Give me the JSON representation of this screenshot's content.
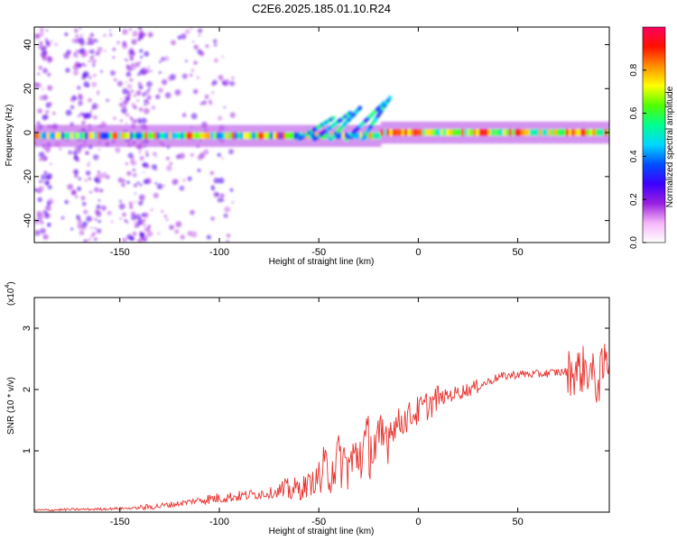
{
  "title": "C2E6.2025.185.01.10.R24",
  "chart_data": [
    {
      "type": "heatmap",
      "xlabel": "Height of straight line (km)",
      "ylabel": "Frequency (Hz)",
      "xlim": [
        -193,
        96
      ],
      "ylim": [
        -50,
        48
      ],
      "xticks": [
        -150,
        -100,
        -50,
        0,
        50
      ],
      "yticks": [
        -40,
        -20,
        0,
        20,
        40
      ],
      "grid": false,
      "colorbar": {
        "label": "Normalized spectral amplitude",
        "range": [
          0,
          1
        ],
        "ticks": [
          "0.0",
          "0.2",
          "0.4",
          "0.6",
          "0.8"
        ],
        "colors": [
          "#ffffff",
          "#f6b6f8",
          "#9a20e0",
          "#3c00ff",
          "#0050ff",
          "#00d8ff",
          "#00ff90",
          "#50ff00",
          "#ffff00",
          "#ff9000",
          "#ff1000",
          "#ff0060"
        ]
      },
      "features": [
        {
          "name": "main band",
          "x_range": [
            -193,
            96
          ],
          "frequency_hz": [
            -4,
            1
          ]
        },
        {
          "name": "rising streaks",
          "x_range": [
            -60,
            -20
          ],
          "frequency_hz": [
            0,
            20
          ]
        }
      ]
    },
    {
      "type": "line",
      "xlabel": "Height of straight line (km)",
      "ylabel": "SNR (10 * v/v)",
      "yscale_label": "(x10",
      "yscale_exp": "4",
      "ylabel_unit": ")",
      "xlim": [
        -193,
        96
      ],
      "ylim": [
        0,
        3.5
      ],
      "xticks": [
        -150,
        -100,
        -50,
        0,
        50
      ],
      "yticks": [
        1,
        2,
        3
      ],
      "grid": false,
      "color": "#e8322e",
      "series": [
        {
          "x": [
            -193,
            -180,
            -160,
            -140,
            -130,
            -120,
            -110,
            -100,
            -90,
            -80,
            -70,
            -60,
            -55,
            -50,
            -45,
            -40,
            -35,
            -30,
            -25,
            -20,
            -15,
            -10,
            -5,
            0,
            5,
            10,
            20,
            30,
            40,
            50,
            60,
            70,
            80,
            85,
            90,
            95
          ],
          "y": [
            0.03,
            0.04,
            0.05,
            0.07,
            0.1,
            0.14,
            0.2,
            0.23,
            0.26,
            0.3,
            0.33,
            0.38,
            0.45,
            0.55,
            0.7,
            0.85,
            0.75,
            0.95,
            1.1,
            1.0,
            1.35,
            1.45,
            1.55,
            1.65,
            1.75,
            1.85,
            1.95,
            2.05,
            2.2,
            2.25,
            2.25,
            2.28,
            2.3,
            2.35,
            2.1,
            2.5
          ]
        }
      ]
    }
  ]
}
